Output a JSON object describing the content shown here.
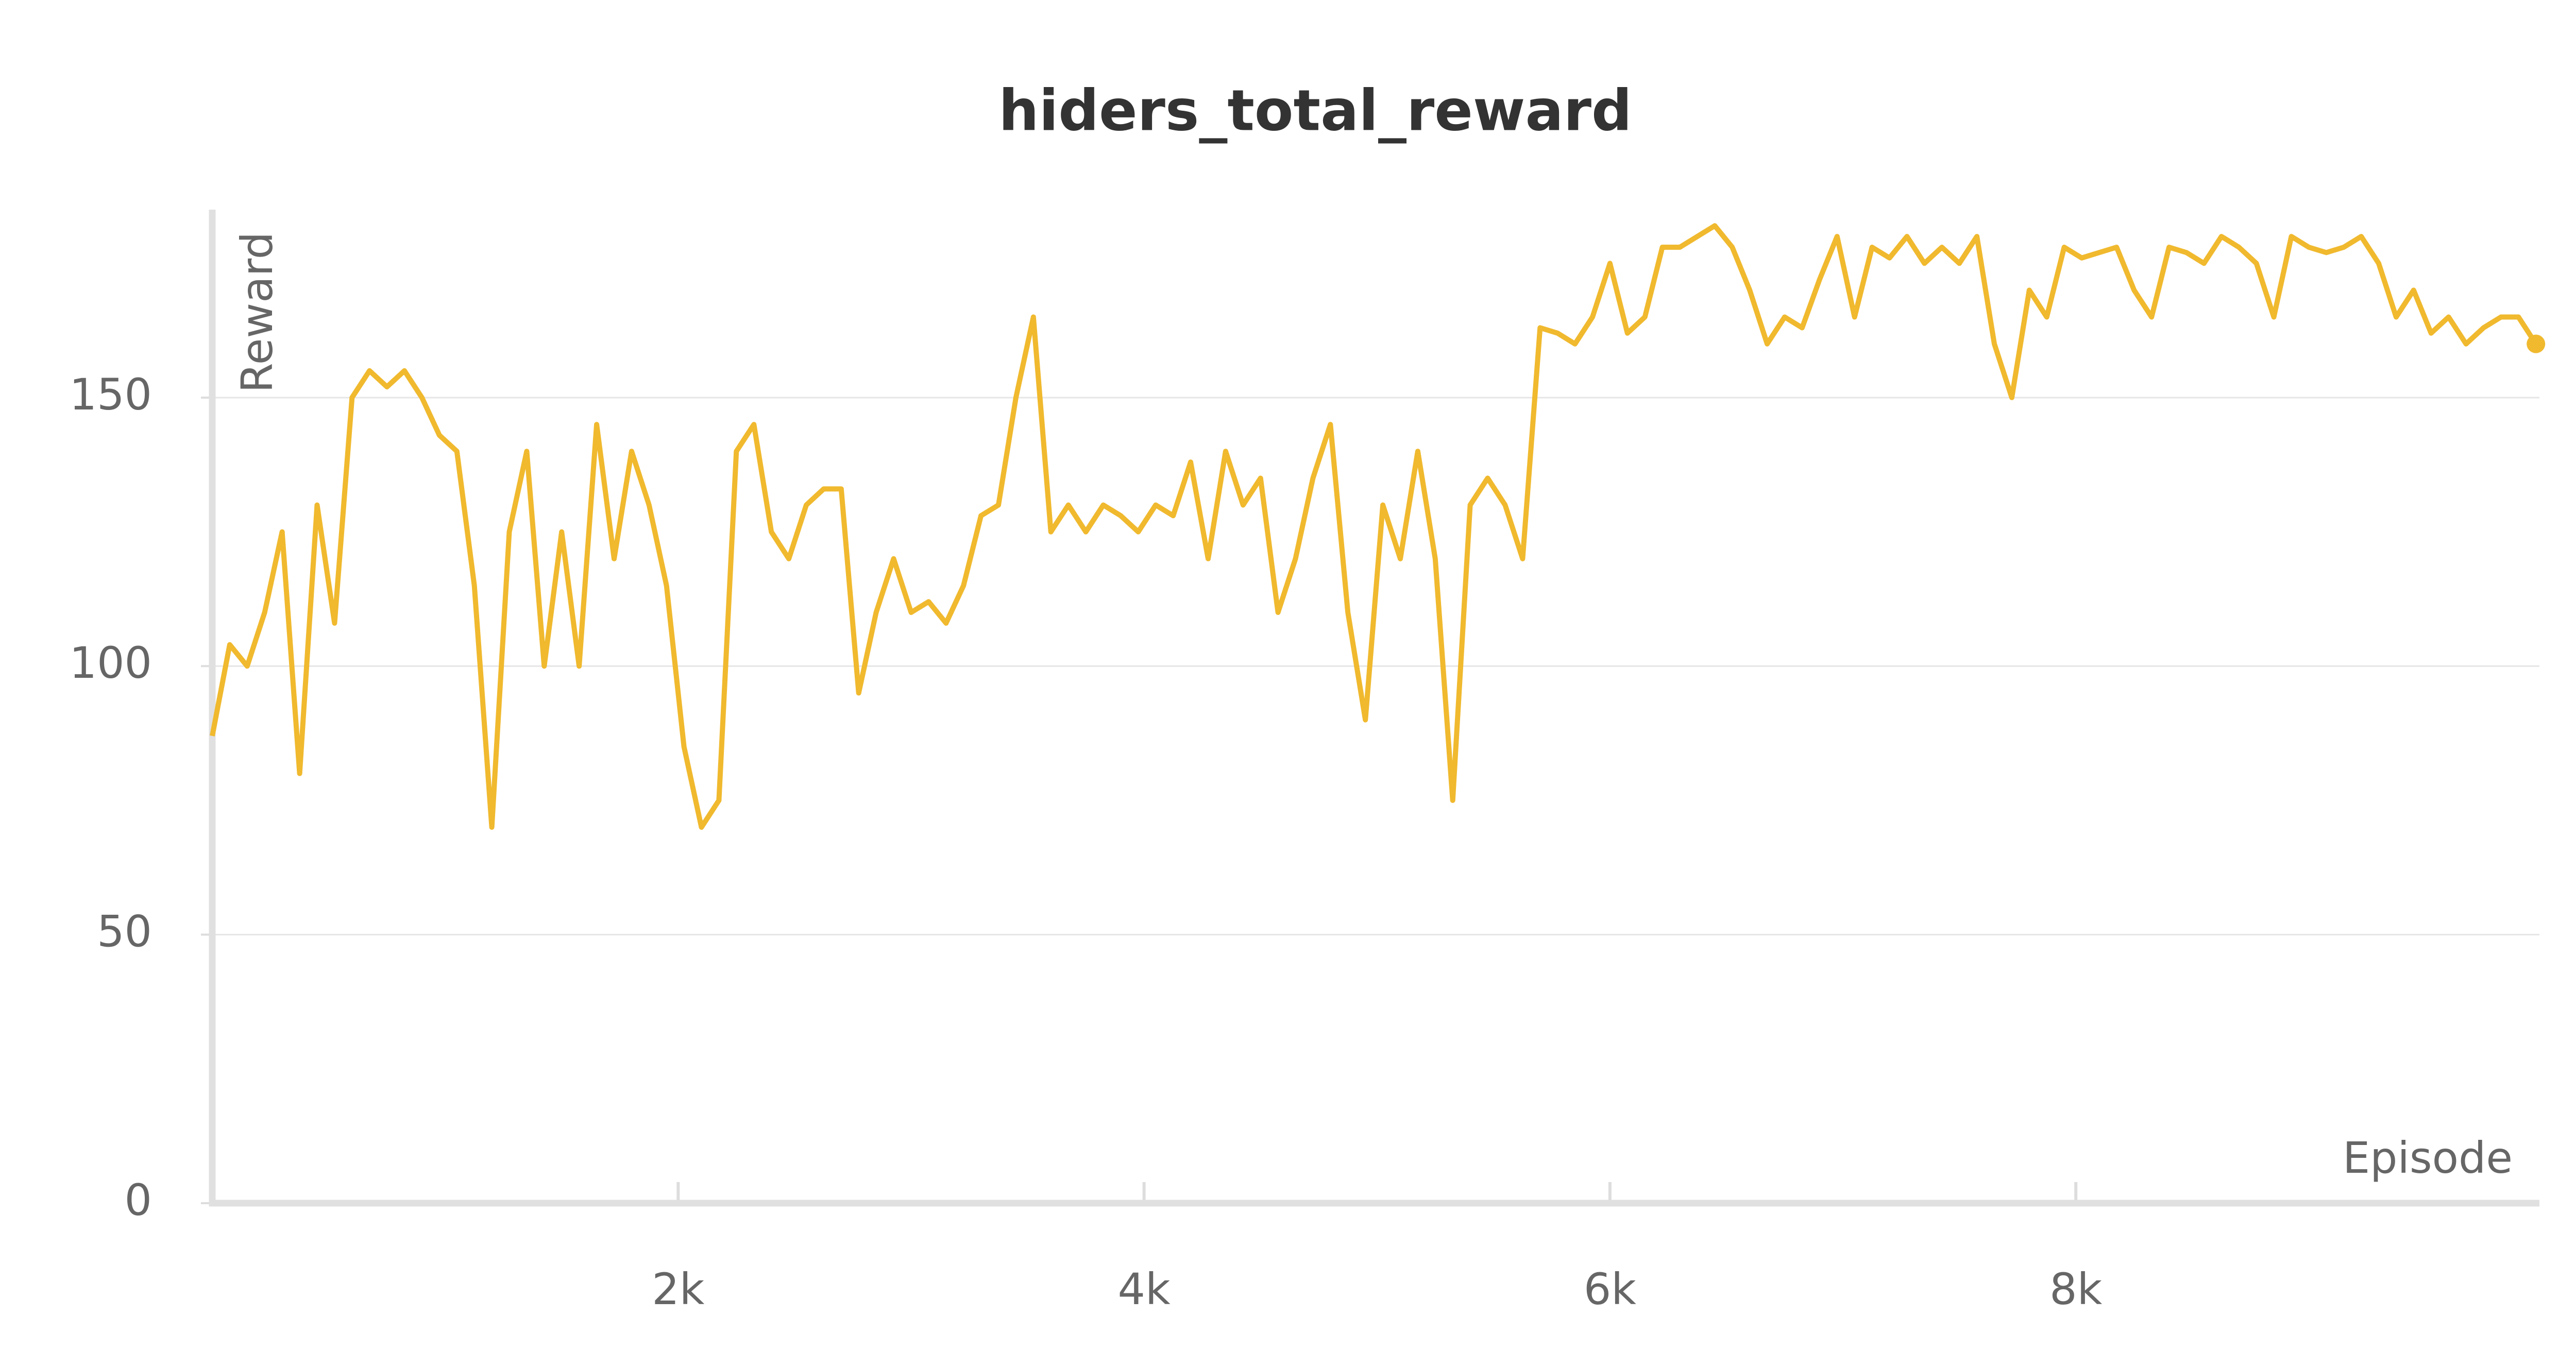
{
  "chart_data": {
    "type": "line",
    "title": "hiders_total_reward",
    "y_label": "Reward",
    "x_label": "Episode",
    "x": [
      0,
      75,
      150,
      225,
      300,
      375,
      450,
      525,
      600,
      675,
      750,
      825,
      900,
      975,
      1050,
      1125,
      1200,
      1275,
      1350,
      1425,
      1500,
      1575,
      1650,
      1725,
      1800,
      1875,
      1950,
      2025,
      2100,
      2175,
      2250,
      2325,
      2400,
      2475,
      2550,
      2625,
      2700,
      2775,
      2850,
      2925,
      3000,
      3075,
      3150,
      3225,
      3300,
      3375,
      3450,
      3525,
      3600,
      3675,
      3750,
      3825,
      3900,
      3975,
      4050,
      4125,
      4200,
      4275,
      4350,
      4425,
      4500,
      4575,
      4650,
      4725,
      4800,
      4875,
      4950,
      5025,
      5100,
      5175,
      5250,
      5325,
      5400,
      5475,
      5550,
      5625,
      5700,
      5775,
      5850,
      5925,
      6000,
      6075,
      6150,
      6225,
      6300,
      6375,
      6450,
      6525,
      6600,
      6675,
      6750,
      6825,
      6900,
      6975,
      7050,
      7125,
      7200,
      7275,
      7350,
      7425,
      7500,
      7575,
      7650,
      7725,
      7800,
      7875,
      7950,
      8025,
      8100,
      8175,
      8250,
      8325,
      8400,
      8475,
      8550,
      8625,
      8700,
      8775,
      8850,
      8925,
      9000,
      9075,
      9150,
      9225,
      9300,
      9375,
      9450,
      9525,
      9600,
      9675,
      9750,
      9825,
      9900,
      9975
    ],
    "series": [
      {
        "name": "hiders_total_reward",
        "color": "#f0b92e",
        "values": [
          87,
          104,
          100,
          110,
          125,
          80,
          130,
          108,
          150,
          155,
          152,
          155,
          150,
          143,
          140,
          115,
          70,
          125,
          140,
          100,
          125,
          100,
          145,
          120,
          140,
          130,
          115,
          85,
          70,
          75,
          140,
          145,
          125,
          120,
          130,
          133,
          133,
          95,
          110,
          120,
          110,
          112,
          108,
          115,
          128,
          130,
          150,
          165,
          125,
          130,
          125,
          130,
          128,
          125,
          130,
          128,
          138,
          120,
          140,
          130,
          135,
          110,
          120,
          135,
          145,
          110,
          90,
          130,
          120,
          140,
          120,
          75,
          130,
          135,
          130,
          120,
          163,
          162,
          160,
          165,
          175,
          162,
          165,
          178,
          178,
          180,
          182,
          178,
          170,
          160,
          165,
          163,
          172,
          180,
          165,
          178,
          176,
          180,
          175,
          178,
          175,
          180,
          160,
          150,
          170,
          165,
          178,
          176,
          177,
          178,
          170,
          165,
          178,
          177,
          175,
          180,
          178,
          175,
          165,
          180,
          178,
          177,
          178,
          180,
          175,
          165,
          170,
          162,
          165,
          160,
          163,
          165,
          165,
          160
        ]
      }
    ],
    "xlim": [
      0,
      9990
    ],
    "ylim": [
      0,
      185
    ],
    "xticks": [
      {
        "value": 2000,
        "label": "2k"
      },
      {
        "value": 4000,
        "label": "4k"
      },
      {
        "value": 6000,
        "label": "6k"
      },
      {
        "value": 8000,
        "label": "8k"
      }
    ],
    "yticks": [
      0,
      50,
      100,
      150
    ],
    "grid": true
  }
}
